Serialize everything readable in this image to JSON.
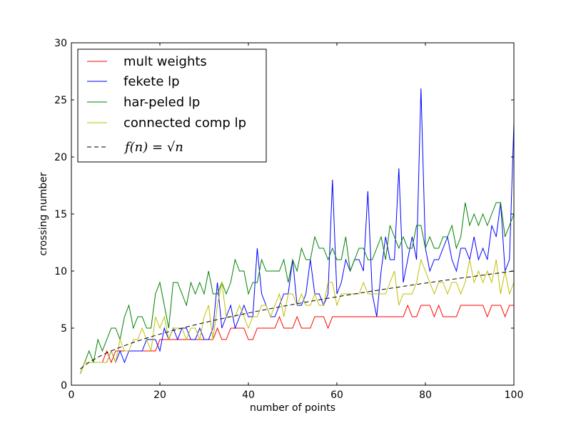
{
  "chart_data": {
    "type": "line",
    "xlabel": "number of points",
    "ylabel": "crossing number",
    "xlim": [
      0,
      100
    ],
    "ylim": [
      0,
      30
    ],
    "xticks": [
      0,
      20,
      40,
      60,
      80,
      100
    ],
    "yticks": [
      0,
      5,
      10,
      15,
      20,
      25,
      30
    ],
    "grid": false,
    "legend_position": "top-left",
    "x": [
      2,
      3,
      4,
      5,
      6,
      7,
      8,
      9,
      10,
      11,
      12,
      13,
      14,
      15,
      16,
      17,
      18,
      19,
      20,
      21,
      22,
      23,
      24,
      25,
      26,
      27,
      28,
      29,
      30,
      31,
      32,
      33,
      34,
      35,
      36,
      37,
      38,
      39,
      40,
      41,
      42,
      43,
      44,
      45,
      46,
      47,
      48,
      49,
      50,
      51,
      52,
      53,
      54,
      55,
      56,
      57,
      58,
      59,
      60,
      61,
      62,
      63,
      64,
      65,
      66,
      67,
      68,
      69,
      70,
      71,
      72,
      73,
      74,
      75,
      76,
      77,
      78,
      79,
      80,
      81,
      82,
      83,
      84,
      85,
      86,
      87,
      88,
      89,
      90,
      91,
      92,
      93,
      94,
      95,
      96,
      97,
      98,
      99,
      100
    ],
    "series": [
      {
        "name": "mult weights",
        "color": "#ff0000",
        "values": [
          1,
          2,
          2,
          2,
          2,
          2,
          3,
          2,
          3,
          3,
          3,
          3,
          3,
          3,
          3,
          3,
          3,
          3,
          4,
          4,
          4,
          4,
          4,
          4,
          4,
          4,
          4,
          4,
          4,
          4,
          4,
          5,
          4,
          4,
          5,
          5,
          5,
          5,
          4,
          4,
          5,
          5,
          5,
          5,
          5,
          6,
          5,
          5,
          5,
          6,
          5,
          5,
          5,
          6,
          6,
          6,
          5,
          6,
          6,
          6,
          6,
          6,
          6,
          6,
          6,
          6,
          6,
          6,
          6,
          6,
          6,
          6,
          6,
          6,
          7,
          6,
          6,
          7,
          7,
          7,
          6,
          7,
          6,
          6,
          6,
          6,
          7,
          7,
          7,
          7,
          7,
          7,
          6,
          7,
          7,
          7,
          6,
          7,
          7
        ]
      },
      {
        "name": "fekete lp",
        "color": "#0000ff",
        "values": [
          1,
          2,
          2,
          2,
          2,
          2,
          2,
          3,
          2,
          3,
          2,
          3,
          3,
          3,
          3,
          4,
          4,
          4,
          3,
          5,
          4,
          5,
          4,
          5,
          5,
          4,
          4,
          5,
          4,
          4,
          5,
          9,
          5,
          6,
          7,
          5,
          6,
          7,
          6,
          6,
          12,
          8,
          7,
          6,
          6,
          7,
          8,
          8,
          11,
          7,
          7,
          8,
          11,
          8,
          8,
          7,
          8,
          18,
          8,
          9,
          11,
          10,
          11,
          11,
          10,
          17,
          8,
          6,
          10,
          13,
          11,
          11,
          19,
          9,
          11,
          13,
          11,
          26,
          12,
          10,
          11,
          11,
          12,
          13,
          11,
          10,
          12,
          12,
          11,
          13,
          11,
          12,
          11,
          14,
          13,
          16,
          10,
          11,
          23
        ]
      },
      {
        "name": "har-peled lp",
        "color": "#008000",
        "values": [
          1,
          2,
          3,
          2,
          4,
          3,
          4,
          5,
          5,
          4,
          6,
          7,
          5,
          6,
          6,
          5,
          5,
          8,
          9,
          7,
          5,
          9,
          9,
          8,
          7,
          9,
          8,
          9,
          8,
          10,
          8,
          8,
          9,
          8,
          9,
          11,
          10,
          10,
          8,
          9,
          9,
          11,
          10,
          10,
          10,
          10,
          11,
          9,
          11,
          10,
          12,
          11,
          11,
          13,
          12,
          12,
          11,
          12,
          11,
          11,
          13,
          10,
          11,
          12,
          12,
          11,
          11,
          12,
          13,
          11,
          14,
          13,
          12,
          13,
          12,
          12,
          14,
          14,
          12,
          13,
          12,
          12,
          13,
          13,
          14,
          12,
          13,
          16,
          14,
          15,
          14,
          15,
          14,
          15,
          16,
          16,
          13,
          14,
          15
        ]
      },
      {
        "name": "connected comp lp",
        "color": "#bfbf00",
        "values": [
          1,
          2,
          2,
          2,
          2,
          2,
          2,
          3,
          2,
          4,
          3,
          3,
          4,
          4,
          5,
          4,
          3,
          6,
          5,
          6,
          4,
          5,
          5,
          5,
          4,
          5,
          5,
          4,
          6,
          7,
          4,
          7,
          9,
          6,
          6,
          6,
          7,
          6,
          5,
          6,
          6,
          7,
          7,
          6,
          7,
          8,
          6,
          8,
          8,
          7,
          8,
          7,
          7,
          8,
          7,
          7,
          9,
          9,
          7,
          8,
          8,
          8,
          8,
          8,
          9,
          8,
          8,
          8,
          8,
          8,
          9,
          10,
          7,
          8,
          8,
          8,
          9,
          11,
          10,
          9,
          8,
          9,
          9,
          8,
          9,
          9,
          8,
          9,
          11,
          9,
          10,
          9,
          10,
          9,
          11,
          8,
          10,
          8,
          9
        ]
      },
      {
        "name": "f(n) = √n",
        "color": "#000000",
        "dashed": true,
        "function": "sqrt"
      }
    ]
  }
}
